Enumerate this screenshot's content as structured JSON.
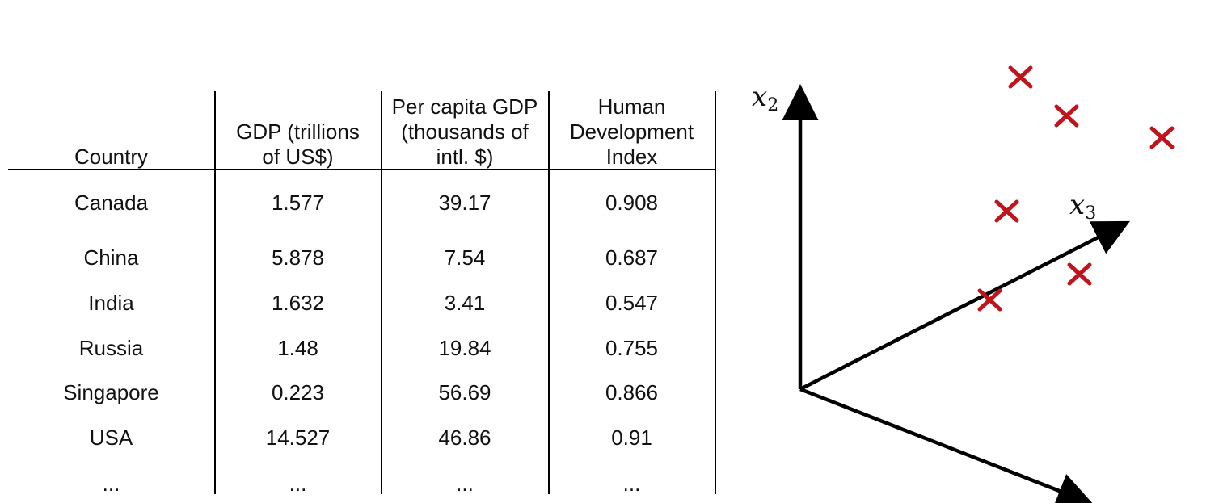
{
  "table": {
    "headers": [
      "Country",
      "GDP (trillions\nof US$)",
      "Per capita GDP\n(thousands of\nintl. $)",
      "Human\nDevelopment\nIndex"
    ],
    "rows": [
      [
        "Canada",
        "1.577",
        "39.17",
        "0.908"
      ],
      [
        "China",
        "5.878",
        "7.54",
        "0.687"
      ],
      [
        "India",
        "1.632",
        "3.41",
        "0.547"
      ],
      [
        "Russia",
        "1.48",
        "19.84",
        "0.755"
      ],
      [
        "Singapore",
        "0.223",
        "56.69",
        "0.866"
      ],
      [
        "USA",
        "14.527",
        "46.86",
        "0.91"
      ],
      [
        "...",
        "...",
        "...",
        "..."
      ]
    ]
  },
  "plot": {
    "x2_label": "x",
    "x2_sub": "2",
    "x3_label": "x",
    "x3_sub": "3",
    "axis_color": "#000000",
    "marker_color": "#c0141c",
    "marker_symbol": "cross-marker"
  }
}
